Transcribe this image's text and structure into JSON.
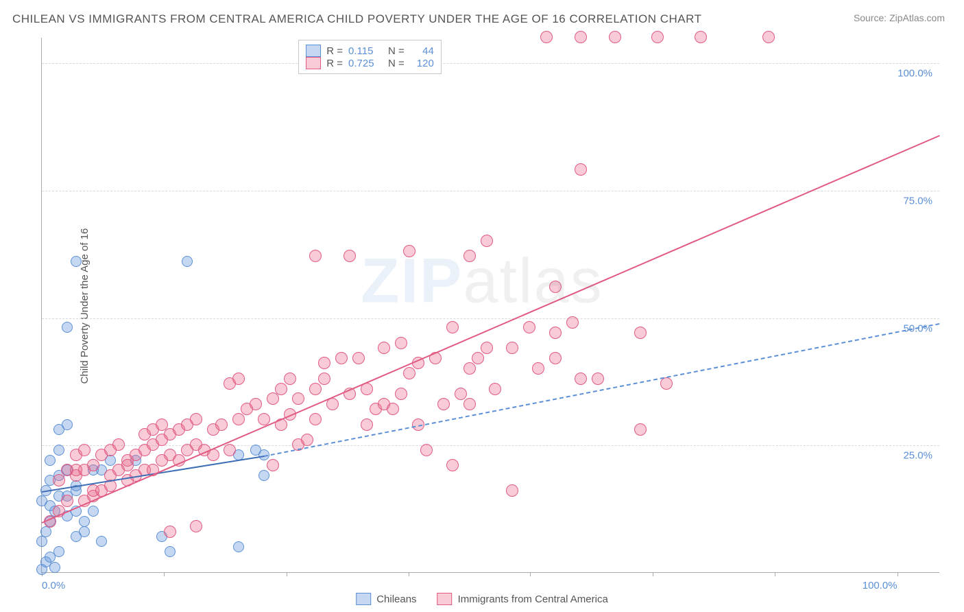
{
  "title": "CHILEAN VS IMMIGRANTS FROM CENTRAL AMERICA CHILD POVERTY UNDER THE AGE OF 16 CORRELATION CHART",
  "source": "Source: ZipAtlas.com",
  "ylabel": "Child Poverty Under the Age of 16",
  "watermark_z": "ZIP",
  "watermark_atlas": "atlas",
  "chart": {
    "xlim": [
      0,
      105
    ],
    "ylim": [
      0,
      105
    ],
    "xticks": [
      0,
      14.3,
      28.6,
      42.9,
      57.1,
      71.4,
      85.7,
      100
    ],
    "xtick_labels_shown": {
      "0": "0.0%",
      "100": "100.0%"
    },
    "yticks": [
      25,
      50,
      75,
      100
    ],
    "ytick_labels": {
      "25": "25.0%",
      "50": "50.0%",
      "75": "75.0%",
      "100": "100.0%"
    },
    "background_color": "#ffffff",
    "grid_color": "#d8d8d8",
    "axis_color": "#aaaaaa",
    "tick_label_color": "#5b8fd6"
  },
  "series": {
    "chileans": {
      "label": "Chileans",
      "fill": "rgba(91,143,214,0.35)",
      "stroke": "#5b8fd6",
      "point_radius": 8,
      "r_value": "0.115",
      "n_value": "44",
      "trend": {
        "x1": 0,
        "y1": 16,
        "x2": 26,
        "y2": 23,
        "color": "#3d6db5",
        "dashed": false
      },
      "trend_ext": {
        "x1": 26,
        "y1": 23,
        "x2": 105,
        "y2": 49,
        "color": "#5b8fd6",
        "dashed": true
      },
      "points": [
        [
          0,
          0.5
        ],
        [
          0.5,
          2
        ],
        [
          1,
          3
        ],
        [
          1.5,
          1
        ],
        [
          2,
          4
        ],
        [
          0,
          6
        ],
        [
          0.5,
          8
        ],
        [
          1,
          10
        ],
        [
          1.5,
          12
        ],
        [
          2,
          15
        ],
        [
          0.5,
          16
        ],
        [
          1,
          18
        ],
        [
          2,
          19
        ],
        [
          3,
          20
        ],
        [
          1,
          22
        ],
        [
          2,
          24
        ],
        [
          0,
          14
        ],
        [
          3,
          15
        ],
        [
          4,
          16
        ],
        [
          2,
          28
        ],
        [
          3,
          29
        ],
        [
          4,
          12
        ],
        [
          5,
          10
        ],
        [
          6,
          12
        ],
        [
          7,
          6
        ],
        [
          4,
          7
        ],
        [
          5,
          8
        ],
        [
          3,
          11
        ],
        [
          4,
          17
        ],
        [
          6,
          20
        ],
        [
          7,
          20
        ],
        [
          8,
          22
        ],
        [
          3,
          48
        ],
        [
          4,
          61
        ],
        [
          17,
          61
        ],
        [
          14,
          7
        ],
        [
          15,
          4
        ],
        [
          11,
          22
        ],
        [
          23,
          5
        ],
        [
          23,
          23
        ],
        [
          26,
          23
        ],
        [
          25,
          24
        ],
        [
          26,
          19
        ],
        [
          1,
          13
        ]
      ]
    },
    "immigrants": {
      "label": "Immigrants from Central America",
      "fill": "rgba(234,106,140,0.35)",
      "stroke": "#e15a82",
      "point_radius": 9,
      "r_value": "0.725",
      "n_value": "120",
      "trend": {
        "x1": 0,
        "y1": 10,
        "x2": 105,
        "y2": 86,
        "color": "#e15a82",
        "dashed": false
      },
      "points": [
        [
          1,
          10
        ],
        [
          2,
          12
        ],
        [
          3,
          14
        ],
        [
          2,
          18
        ],
        [
          3,
          20
        ],
        [
          4,
          19
        ],
        [
          5,
          20
        ],
        [
          6,
          21
        ],
        [
          4,
          23
        ],
        [
          5,
          24
        ],
        [
          6,
          15
        ],
        [
          7,
          16
        ],
        [
          8,
          17
        ],
        [
          8,
          19
        ],
        [
          9,
          20
        ],
        [
          10,
          21
        ],
        [
          7,
          23
        ],
        [
          8,
          24
        ],
        [
          9,
          25
        ],
        [
          10,
          18
        ],
        [
          11,
          19
        ],
        [
          12,
          20
        ],
        [
          10,
          22
        ],
        [
          11,
          23
        ],
        [
          12,
          24
        ],
        [
          13,
          25
        ],
        [
          14,
          26
        ],
        [
          13,
          20
        ],
        [
          14,
          22
        ],
        [
          15,
          23
        ],
        [
          12,
          27
        ],
        [
          13,
          28
        ],
        [
          14,
          29
        ],
        [
          16,
          22
        ],
        [
          17,
          24
        ],
        [
          18,
          25
        ],
        [
          15,
          27
        ],
        [
          16,
          28
        ],
        [
          17,
          29
        ],
        [
          18,
          30
        ],
        [
          19,
          24
        ],
        [
          20,
          28
        ],
        [
          21,
          29
        ],
        [
          20,
          23
        ],
        [
          22,
          24
        ],
        [
          23,
          30
        ],
        [
          24,
          32
        ],
        [
          25,
          33
        ],
        [
          22,
          37
        ],
        [
          23,
          38
        ],
        [
          26,
          30
        ],
        [
          28,
          29
        ],
        [
          29,
          31
        ],
        [
          27,
          34
        ],
        [
          28,
          36
        ],
        [
          29,
          38
        ],
        [
          27,
          21
        ],
        [
          30,
          25
        ],
        [
          31,
          26
        ],
        [
          32,
          30
        ],
        [
          30,
          34
        ],
        [
          32,
          36
        ],
        [
          33,
          38
        ],
        [
          34,
          33
        ],
        [
          33,
          41
        ],
        [
          35,
          42
        ],
        [
          36,
          35
        ],
        [
          38,
          36
        ],
        [
          37,
          42
        ],
        [
          39,
          32
        ],
        [
          40,
          33
        ],
        [
          38,
          29
        ],
        [
          41,
          32
        ],
        [
          42,
          35
        ],
        [
          43,
          39
        ],
        [
          40,
          44
        ],
        [
          42,
          45
        ],
        [
          44,
          29
        ],
        [
          45,
          24
        ],
        [
          44,
          41
        ],
        [
          46,
          42
        ],
        [
          48,
          48
        ],
        [
          43,
          63
        ],
        [
          47,
          33
        ],
        [
          49,
          35
        ],
        [
          50,
          33
        ],
        [
          50,
          40
        ],
        [
          51,
          42
        ],
        [
          52,
          44
        ],
        [
          48,
          21
        ],
        [
          53,
          36
        ],
        [
          55,
          44
        ],
        [
          57,
          48
        ],
        [
          50,
          62
        ],
        [
          52,
          65
        ],
        [
          55,
          16
        ],
        [
          58,
          40
        ],
        [
          60,
          42
        ],
        [
          60,
          47
        ],
        [
          62,
          49
        ],
        [
          63,
          38
        ],
        [
          65,
          38
        ],
        [
          63,
          79
        ],
        [
          60,
          56
        ],
        [
          70,
          47
        ],
        [
          73,
          37
        ],
        [
          70,
          28
        ],
        [
          59,
          105
        ],
        [
          63,
          105
        ],
        [
          67,
          105
        ],
        [
          72,
          105
        ],
        [
          77,
          105
        ],
        [
          85,
          105
        ],
        [
          32,
          62
        ],
        [
          36,
          62
        ],
        [
          15,
          8
        ],
        [
          18,
          9
        ],
        [
          5,
          14
        ],
        [
          6,
          16
        ],
        [
          4,
          20
        ]
      ]
    }
  },
  "stats_legend": {
    "r_label": "R =",
    "n_label": "N ="
  },
  "bottom_legend": {
    "items": [
      "Chileans",
      "Immigrants from Central America"
    ]
  }
}
